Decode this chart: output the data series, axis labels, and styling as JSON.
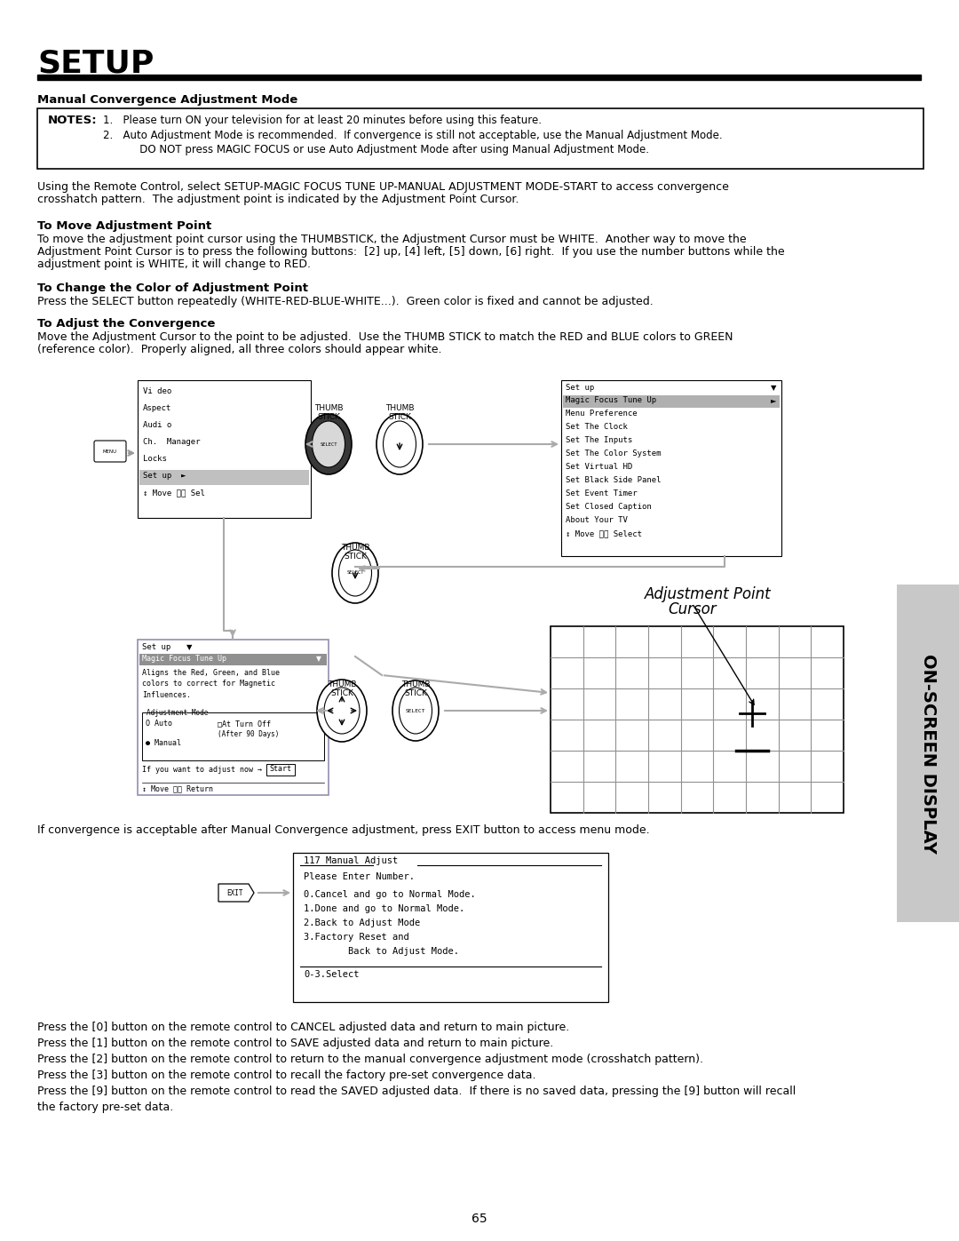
{
  "title": "SETUP",
  "section1_header": "Manual Convergence Adjustment Mode",
  "notes_label": "NOTES:",
  "note1": "1.   Please turn ON your television for at least 20 minutes before using this feature.",
  "note2": "2.   Auto Adjustment Mode is recommended.  If convergence is still not acceptable, use the Manual Adjustment Mode.",
  "note3": "           DO NOT press MAGIC FOCUS or use Auto Adjustment Mode after using Manual Adjustment Mode.",
  "para1_l1": "Using the Remote Control, select SETUP-MAGIC FOCUS TUNE UP-MANUAL ADJUSTMENT MODE-START to access convergence",
  "para1_l2": "crosshatch pattern.  The adjustment point is indicated by the Adjustment Point Cursor.",
  "sub1_header": "To Move Adjustment Point",
  "sub1_l1": "To move the adjustment point cursor using the THUMBSTICK, the Adjustment Cursor must be WHITE.  Another way to move the",
  "sub1_l2": "Adjustment Point Cursor is to press the following buttons:  [2] up, [4] left, [5] down, [6] right.  If you use the number buttons while the",
  "sub1_l3": "adjustment point is WHITE, it will change to RED.",
  "sub2_header": "To Change the Color of Adjustment Point",
  "sub2_body": "Press the SELECT button repeatedly (WHITE-RED-BLUE-WHITE...).  Green color is fixed and cannot be adjusted.",
  "sub3_header": "To Adjust the Convergence",
  "sub3_l1": "Move the Adjustment Cursor to the point to be adjusted.  Use the THUMB STICK to match the RED and BLUE colors to GREEN",
  "sub3_l2": "(reference color).  Properly aligned, all three colors should appear white.",
  "diagram_note": "If convergence is acceptable after Manual Convergence adjustment, press EXIT button to access menu mode.",
  "bottom_note1": "Press the [0] button on the remote control to CANCEL adjusted data and return to main picture.",
  "bottom_note2": "Press the [1] button on the remote control to SAVE adjusted data and return to main picture.",
  "bottom_note3": "Press the [2] button on the remote control to return to the manual convergence adjustment mode (crosshatch pattern).",
  "bottom_note4": "Press the [3] button on the remote control to recall the factory pre-set convergence data.",
  "bottom_note5a": "Press the [9] button on the remote control to read the SAVED adjusted data.  If there is no saved data, pressing the [9] button will recall",
  "bottom_note5b": "the factory pre-set data.",
  "page_num": "65",
  "sidebar_text": "ON-SCREEN DISPLAY",
  "bg_color": "#ffffff",
  "text_color": "#000000",
  "sidebar_bg": "#c8c8c8"
}
